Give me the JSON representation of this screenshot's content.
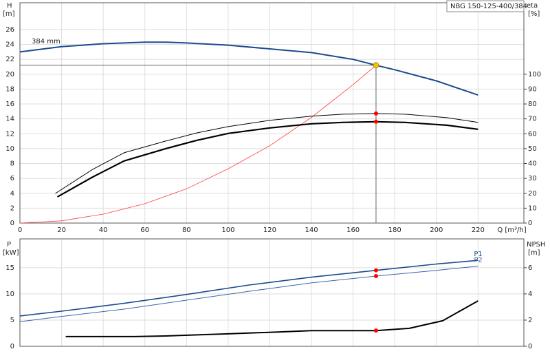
{
  "chart_data": [
    {
      "type": "line",
      "title": "NBG 150-125-400/384",
      "ylabel": "H",
      "yunit": "[m]",
      "y2label": "eta",
      "y2unit": "[%]",
      "xlabel": "Q [m³/h]",
      "annotation": "384 mm",
      "grid": true,
      "crosshair": true,
      "xtick_labels": true,
      "xlim": [
        0,
        242
      ],
      "ylim": [
        0,
        29.6
      ],
      "y2lim": [
        0,
        148
      ],
      "xticks": [
        0,
        20,
        40,
        60,
        80,
        100,
        120,
        140,
        160,
        180,
        200,
        220
      ],
      "yticks": [
        0,
        2,
        4,
        6,
        8,
        10,
        12,
        14,
        16,
        18,
        20,
        22,
        24,
        26
      ],
      "y2ticks": [
        0,
        10,
        20,
        30,
        40,
        50,
        60,
        70,
        80,
        90,
        100
      ],
      "series": [
        {
          "color": "#1a4a8f",
          "width": 2,
          "axis": "y",
          "x": [
            0,
            20,
            40,
            60,
            70,
            80,
            100,
            120,
            140,
            160,
            171,
            180,
            200,
            220
          ],
          "values": [
            23.0,
            23.7,
            24.1,
            24.3,
            24.3,
            24.2,
            23.9,
            23.4,
            22.9,
            22.0,
            21.2,
            20.6,
            19.1,
            17.2
          ],
          "point": {
            "x": 171,
            "y": 21.2
          },
          "point_color": "#f5c400"
        },
        {
          "color": "#ff3b3b",
          "width": 0.8,
          "axis": "y",
          "x": [
            0,
            20,
            40,
            60,
            80,
            100,
            120,
            140,
            160,
            171
          ],
          "values": [
            0,
            0.3,
            1.2,
            2.6,
            4.6,
            7.3,
            10.4,
            14.2,
            18.6,
            21.2
          ]
        },
        {
          "color": "#000000",
          "width": 1,
          "axis": "y2",
          "x": [
            17,
            35,
            50,
            70,
            85,
            100,
            120,
            140,
            155,
            171,
            185,
            205,
            220
          ],
          "values": [
            19.9,
            36.1,
            47.2,
            55.1,
            60.6,
            64.8,
            69.0,
            71.8,
            73.1,
            73.6,
            73.1,
            70.8,
            67.6
          ],
          "point": {
            "x": 171,
            "y": 73.6
          },
          "point_color": "#ff0000"
        },
        {
          "color": "#000000",
          "width": 2.2,
          "axis": "y2",
          "x": [
            18,
            35,
            50,
            70,
            85,
            100,
            120,
            140,
            155,
            171,
            185,
            205,
            220
          ],
          "values": [
            17.6,
            31.0,
            41.7,
            50.0,
            55.6,
            60.2,
            63.9,
            66.7,
            67.6,
            68.1,
            67.6,
            65.7,
            63.0
          ],
          "point": {
            "x": 171,
            "y": 68.1
          },
          "point_color": "#ff0000"
        }
      ]
    },
    {
      "type": "line",
      "ylabel": "P",
      "yunit": "[kW]",
      "y2label": "NPSH",
      "y2unit": "[m]",
      "grid": true,
      "crosshair": false,
      "xtick_labels": false,
      "xlim": [
        0,
        242
      ],
      "ylim": [
        0,
        20.5
      ],
      "y2lim": [
        0,
        8.2
      ],
      "xticks": [
        0,
        20,
        40,
        60,
        80,
        100,
        120,
        140,
        160,
        180,
        200,
        220
      ],
      "yticks": [
        0,
        5,
        10,
        15
      ],
      "y2ticks": [
        0,
        2,
        4,
        6
      ],
      "series": [
        {
          "name": "P1",
          "color": "#1a4a8f",
          "width": 1.6,
          "axis": "y",
          "x": [
            0,
            20,
            50,
            80,
            110,
            140,
            171,
            200,
            220
          ],
          "values": [
            5.8,
            6.7,
            8.2,
            9.9,
            11.7,
            13.2,
            14.5,
            15.7,
            16.4
          ],
          "point": {
            "x": 171,
            "y": 14.5
          },
          "point_color": "#ff0000"
        },
        {
          "name": "P2",
          "color": "#3a66a8",
          "width": 1,
          "axis": "y",
          "x": [
            0,
            20,
            50,
            80,
            110,
            140,
            171,
            200,
            220
          ],
          "values": [
            4.7,
            5.7,
            7.1,
            8.8,
            10.5,
            12.1,
            13.4,
            14.5,
            15.3
          ],
          "point": {
            "x": 171,
            "y": 13.4
          },
          "point_color": "#ff0000"
        },
        {
          "color": "#000000",
          "width": 2,
          "axis": "y2",
          "x": [
            22,
            55,
            70,
            100,
            125,
            140,
            171,
            187,
            203,
            220
          ],
          "values": [
            0.74,
            0.74,
            0.79,
            0.95,
            1.1,
            1.2,
            1.2,
            1.37,
            1.95,
            3.47
          ],
          "point": {
            "x": 171,
            "y": 1.2
          },
          "point_color": "#ff0000"
        }
      ]
    }
  ]
}
